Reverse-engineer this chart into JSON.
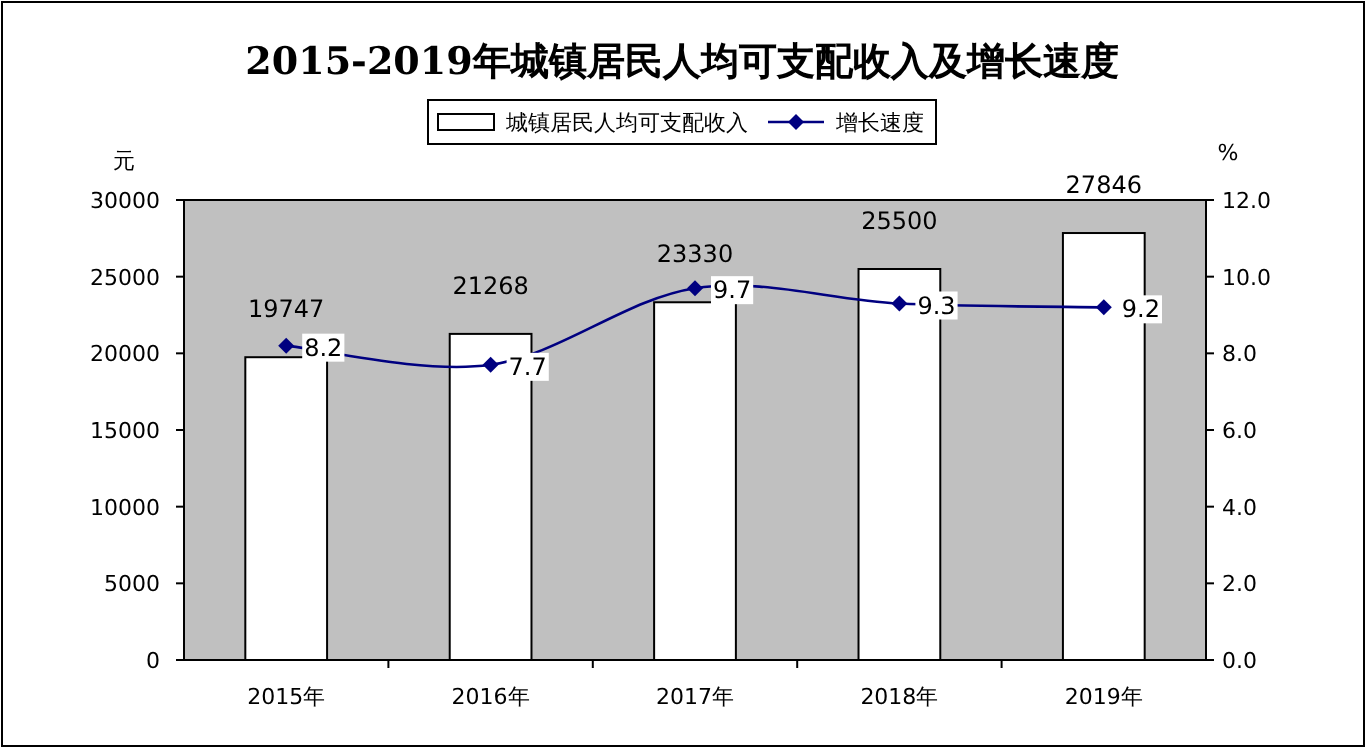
{
  "chart_data": {
    "type": "bar",
    "title": "2015-2019年城镇居民人均可支配收入及增长速度",
    "categories": [
      "2015年",
      "2016年",
      "2017年",
      "2018年",
      "2019年"
    ],
    "series": [
      {
        "name": "城镇居民人均可支配收入",
        "color": "#ffffff",
        "values": [
          19747,
          21268,
          23330,
          25500,
          27846
        ]
      },
      {
        "name": "增长速度",
        "type": "line",
        "axis": "y2",
        "color": "#000080",
        "marker": "diamond",
        "values": [
          8.2,
          7.7,
          9.7,
          9.3,
          9.2
        ]
      }
    ],
    "ylabel": "元",
    "y2label": "%",
    "ylim": [
      0,
      30000
    ],
    "yticks": [
      0,
      5000,
      10000,
      15000,
      20000,
      25000,
      30000
    ],
    "y2lim": [
      0,
      12
    ],
    "y2ticks": [
      {
        "value": 0,
        "label": "0.0"
      },
      {
        "value": 2,
        "label": "2.0"
      },
      {
        "value": 4,
        "label": "4.0"
      },
      {
        "value": 6,
        "label": "6.0"
      },
      {
        "value": 8,
        "label": "8.0"
      },
      {
        "value": 10,
        "label": "10.0"
      },
      {
        "value": 12,
        "label": "12.0"
      }
    ],
    "data_labels": true,
    "legend": "top",
    "grid": false
  }
}
